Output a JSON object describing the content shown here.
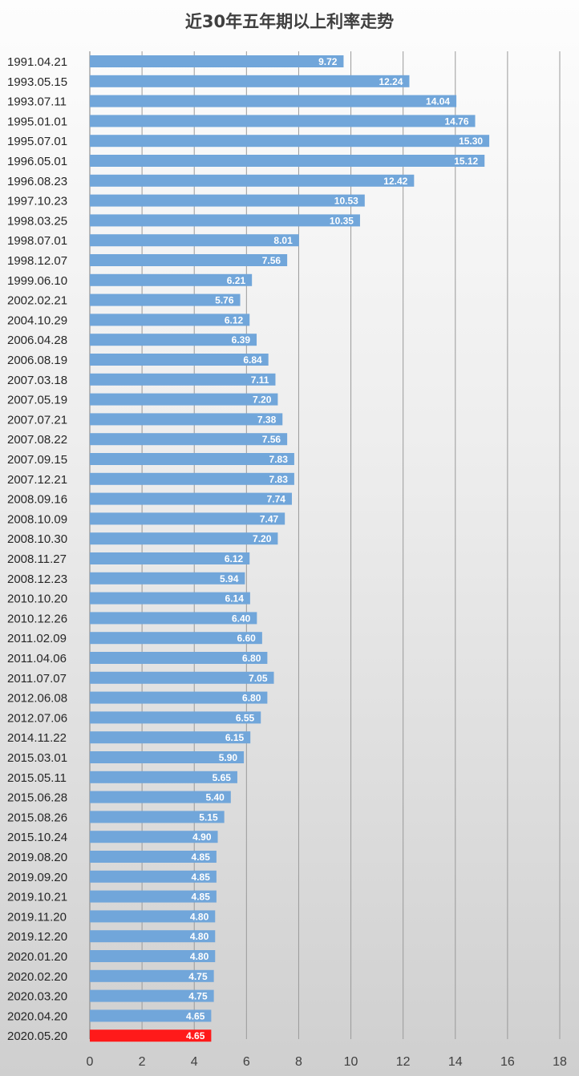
{
  "chart_data": {
    "type": "bar",
    "orientation": "horizontal",
    "title": "近30年五年期以上利率走势",
    "xlabel": "",
    "ylabel": "",
    "xlim": [
      0,
      18
    ],
    "ticks": [
      0,
      2,
      4,
      6,
      8,
      10,
      12,
      14,
      16,
      18
    ],
    "grid": true,
    "legend": "none",
    "bar_color": "#71a6da",
    "highlight_color": "#ff1a1a",
    "highlight_category": "2020.05.20",
    "categories": [
      "1991.04.21",
      "1993.05.15",
      "1993.07.11",
      "1995.01.01",
      "1995.07.01",
      "1996.05.01",
      "1996.08.23",
      "1997.10.23",
      "1998.03.25",
      "1998.07.01",
      "1998.12.07",
      "1999.06.10",
      "2002.02.21",
      "2004.10.29",
      "2006.04.28",
      "2006.08.19",
      "2007.03.18",
      "2007.05.19",
      "2007.07.21",
      "2007.08.22",
      "2007.09.15",
      "2007.12.21",
      "2008.09.16",
      "2008.10.09",
      "2008.10.30",
      "2008.11.27",
      "2008.12.23",
      "2010.10.20",
      "2010.12.26",
      "2011.02.09",
      "2011.04.06",
      "2011.07.07",
      "2012.06.08",
      "2012.07.06",
      "2014.11.22",
      "2015.03.01",
      "2015.05.11",
      "2015.06.28",
      "2015.08.26",
      "2015.10.24",
      "2019.08.20",
      "2019.09.20",
      "2019.10.21",
      "2019.11.20",
      "2019.12.20",
      "2020.01.20",
      "2020.02.20",
      "2020.03.20",
      "2020.04.20",
      "2020.05.20"
    ],
    "values": [
      9.72,
      12.24,
      14.04,
      14.76,
      15.3,
      15.12,
      12.42,
      10.53,
      10.35,
      8.01,
      7.56,
      6.21,
      5.76,
      6.12,
      6.39,
      6.84,
      7.11,
      7.2,
      7.38,
      7.56,
      7.83,
      7.83,
      7.74,
      7.47,
      7.2,
      6.12,
      5.94,
      6.14,
      6.4,
      6.6,
      6.8,
      7.05,
      6.8,
      6.55,
      6.15,
      5.9,
      5.65,
      5.4,
      5.15,
      4.9,
      4.85,
      4.85,
      4.85,
      4.8,
      4.8,
      4.8,
      4.75,
      4.75,
      4.65,
      4.65
    ]
  }
}
